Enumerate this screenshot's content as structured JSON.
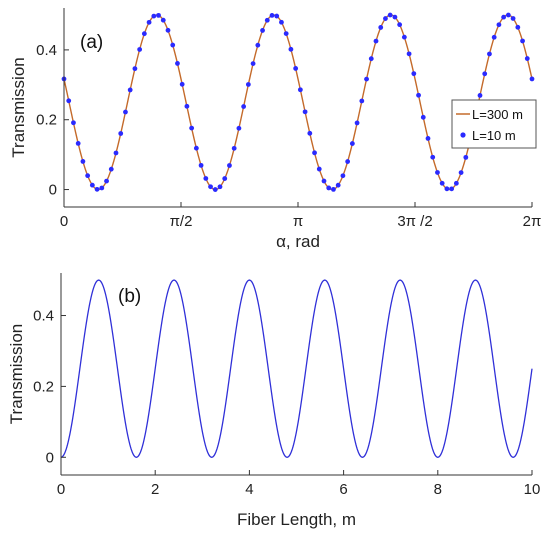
{
  "colors": {
    "line_300m": "#c46a2a",
    "marker_10m": "#2a2aff",
    "line_b": "#3030d8",
    "axis": "#333333",
    "background": "#ffffff"
  },
  "chart_data": [
    {
      "type": "line",
      "panel_label": "(a)",
      "xlabel": "α, rad",
      "ylabel": "Transmission",
      "xlim": [
        0,
        6.2832
      ],
      "ylim": [
        -0.05,
        0.52
      ],
      "xticks": [
        0,
        1.5708,
        3.1416,
        4.7124,
        6.2832
      ],
      "xtick_labels": [
        "0",
        "π/2",
        "π",
        "3π /2",
        "2π"
      ],
      "yticks": [
        0,
        0.2,
        0.4
      ],
      "ytick_labels": [
        "0",
        "0.2",
        "0.4"
      ],
      "legend_position": "right",
      "grid": false,
      "series": [
        {
          "name": "L=300 m",
          "style": "line",
          "period_rad": 1.5708,
          "phase_rad": 1.3,
          "amplitude": 0.25,
          "offset": 0.25
        },
        {
          "name": "L=10 m",
          "style": "markers",
          "period_rad": 1.5708,
          "phase_rad": 1.3,
          "amplitude": 0.25,
          "offset": 0.25,
          "marker_count": 100
        }
      ]
    },
    {
      "type": "line",
      "panel_label": "(b)",
      "xlabel": "Fiber Length, m",
      "ylabel": "Transmission",
      "xlim": [
        0,
        10
      ],
      "ylim": [
        -0.05,
        0.52
      ],
      "xticks": [
        0,
        2,
        4,
        6,
        8,
        10
      ],
      "xtick_labels": [
        "0",
        "2",
        "4",
        "6",
        "8",
        "10"
      ],
      "yticks": [
        0,
        0.2,
        0.4
      ],
      "ytick_labels": [
        "0",
        "0.2",
        "0.4"
      ],
      "grid": false,
      "series": [
        {
          "style": "line",
          "period_m": 1.6,
          "phase_m": 0.8,
          "amplitude": 0.25,
          "offset": 0.25
        }
      ]
    }
  ]
}
